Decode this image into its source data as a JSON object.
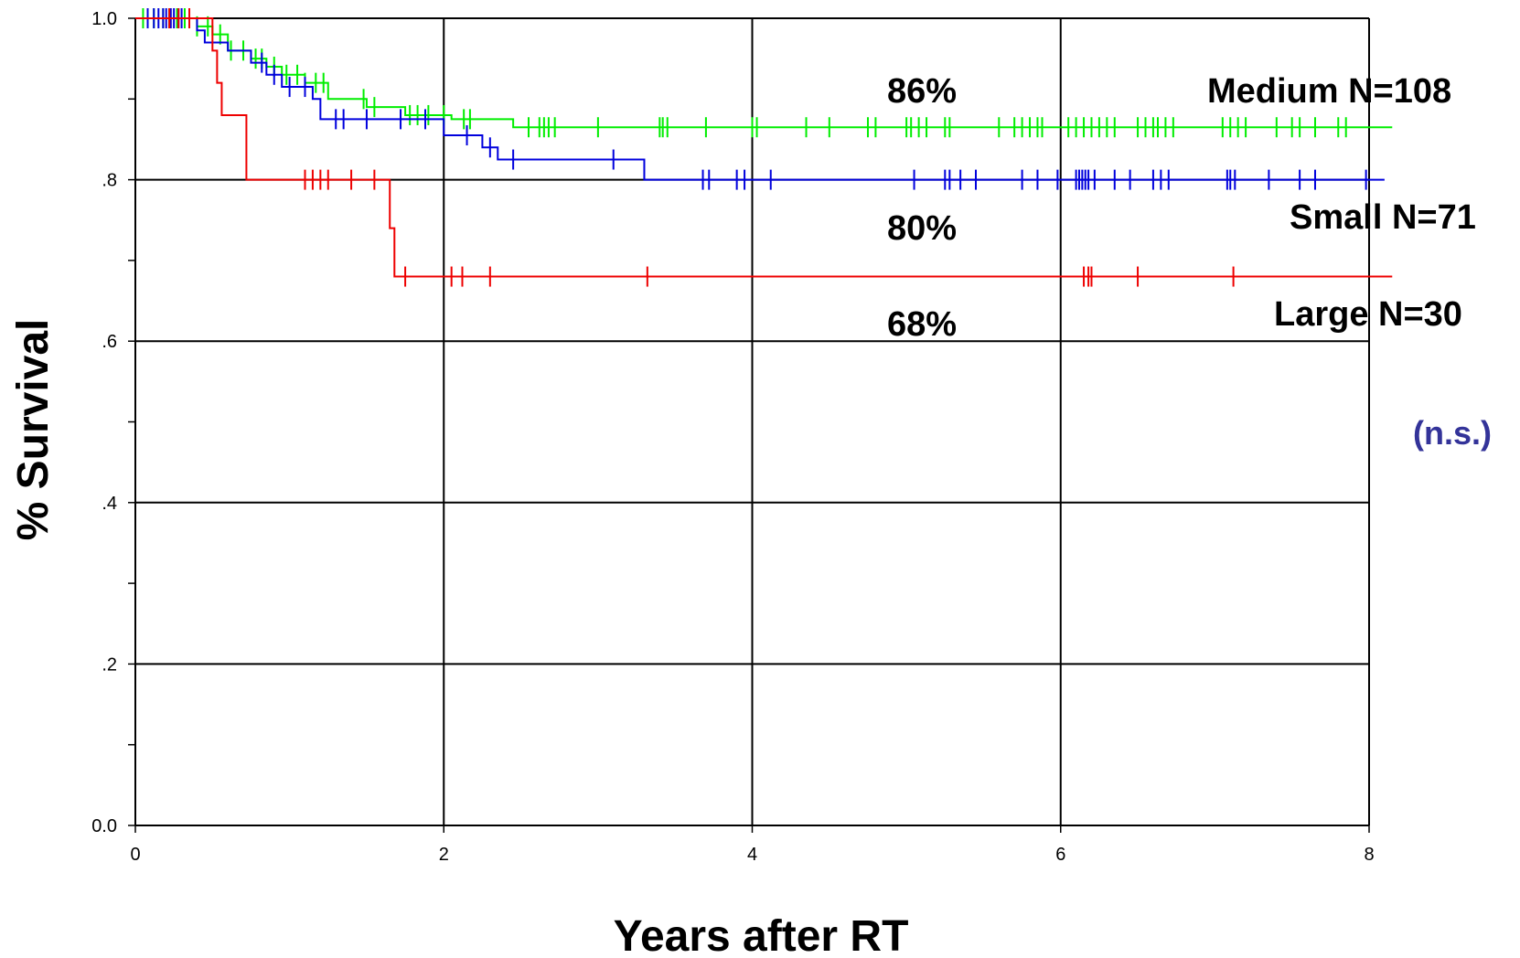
{
  "chart_data": {
    "type": "line",
    "subtype": "kaplan-meier",
    "xlabel": "Years after RT",
    "ylabel": "% Survival",
    "xlim": [
      0,
      8
    ],
    "ylim": [
      0,
      1
    ],
    "x_ticks": [
      0,
      2,
      4,
      6,
      8
    ],
    "x_tick_labels": [
      "0",
      "2",
      "4",
      "6",
      "8"
    ],
    "y_ticks": [
      0,
      0.2,
      0.4,
      0.6,
      0.8,
      1.0
    ],
    "y_tick_labels": [
      "0.0",
      ".2",
      ".4",
      ".6",
      ".8",
      "1.0"
    ],
    "grid": true,
    "series": [
      {
        "name": "Medium N=108",
        "color": "#00ee00",
        "steps": [
          [
            0,
            1.0
          ],
          [
            0.4,
            0.99
          ],
          [
            0.5,
            0.98
          ],
          [
            0.6,
            0.96
          ],
          [
            0.75,
            0.95
          ],
          [
            0.85,
            0.94
          ],
          [
            0.95,
            0.93
          ],
          [
            1.1,
            0.92
          ],
          [
            1.25,
            0.9
          ],
          [
            1.5,
            0.89
          ],
          [
            1.75,
            0.88
          ],
          [
            2.05,
            0.875
          ],
          [
            2.45,
            0.865
          ],
          [
            8.15,
            0.865
          ]
        ],
        "censors": [
          0.05,
          0.12,
          0.18,
          0.22,
          0.27,
          0.32,
          0.4,
          0.47,
          0.55,
          0.62,
          0.7,
          0.78,
          0.82,
          0.9,
          0.98,
          1.05,
          1.1,
          1.17,
          1.22,
          1.48,
          1.55,
          1.78,
          1.83,
          1.9,
          2.0,
          2.13,
          2.17,
          2.55,
          2.62,
          2.65,
          2.68,
          2.72,
          3.0,
          3.4,
          3.42,
          3.45,
          3.7,
          4.0,
          4.03,
          4.35,
          4.5,
          4.75,
          4.8,
          5.0,
          5.03,
          5.08,
          5.13,
          5.25,
          5.28,
          5.6,
          5.7,
          5.75,
          5.8,
          5.85,
          5.88,
          6.05,
          6.1,
          6.15,
          6.2,
          6.25,
          6.3,
          6.35,
          6.5,
          6.55,
          6.6,
          6.63,
          6.68,
          6.73,
          7.05,
          7.1,
          7.15,
          7.2,
          7.4,
          7.5,
          7.55,
          7.65,
          7.8,
          7.85
        ]
      },
      {
        "name": "Small N=71",
        "color": "#0000dd",
        "steps": [
          [
            0,
            1.0
          ],
          [
            0.4,
            0.985
          ],
          [
            0.45,
            0.97
          ],
          [
            0.6,
            0.96
          ],
          [
            0.75,
            0.945
          ],
          [
            0.85,
            0.93
          ],
          [
            0.95,
            0.915
          ],
          [
            1.15,
            0.9
          ],
          [
            1.2,
            0.875
          ],
          [
            2.0,
            0.855
          ],
          [
            2.25,
            0.84
          ],
          [
            2.35,
            0.825
          ],
          [
            3.3,
            0.8
          ],
          [
            8.1,
            0.8
          ]
        ],
        "censors": [
          0.08,
          0.12,
          0.15,
          0.18,
          0.2,
          0.23,
          0.25,
          0.28,
          0.3,
          0.82,
          0.9,
          1.0,
          1.1,
          1.3,
          1.35,
          1.5,
          1.72,
          1.88,
          2.15,
          2.3,
          2.45,
          3.1,
          3.68,
          3.72,
          3.9,
          3.95,
          4.12,
          5.05,
          5.25,
          5.28,
          5.35,
          5.45,
          5.75,
          5.85,
          5.98,
          6.1,
          6.12,
          6.14,
          6.16,
          6.18,
          6.22,
          6.35,
          6.45,
          6.6,
          6.65,
          6.7,
          7.08,
          7.1,
          7.13,
          7.35,
          7.55,
          7.65,
          7.98
        ]
      },
      {
        "name": "Large N=30",
        "color": "#ee0000",
        "steps": [
          [
            0,
            1.0
          ],
          [
            0.5,
            0.96
          ],
          [
            0.53,
            0.92
          ],
          [
            0.56,
            0.88
          ],
          [
            0.72,
            0.8
          ],
          [
            1.65,
            0.74
          ],
          [
            1.68,
            0.68
          ],
          [
            8.15,
            0.68
          ]
        ],
        "censors": [
          0.22,
          0.28,
          0.35,
          1.1,
          1.15,
          1.2,
          1.25,
          1.4,
          1.55,
          1.75,
          2.05,
          2.12,
          2.3,
          3.32,
          6.15,
          6.18,
          6.2,
          6.5,
          7.12
        ]
      }
    ],
    "annotations": [
      {
        "text": "86%",
        "x": 5.0,
        "y": 0.9
      },
      {
        "text": "80%",
        "x": 5.0,
        "y": 0.73
      },
      {
        "text": "68%",
        "x": 5.0,
        "y": 0.61
      },
      {
        "text": "Medium N=108"
      },
      {
        "text": "Small N=71"
      },
      {
        "text": "Large N=30"
      },
      {
        "text": "(n.s.)",
        "color": "#333399"
      }
    ]
  }
}
